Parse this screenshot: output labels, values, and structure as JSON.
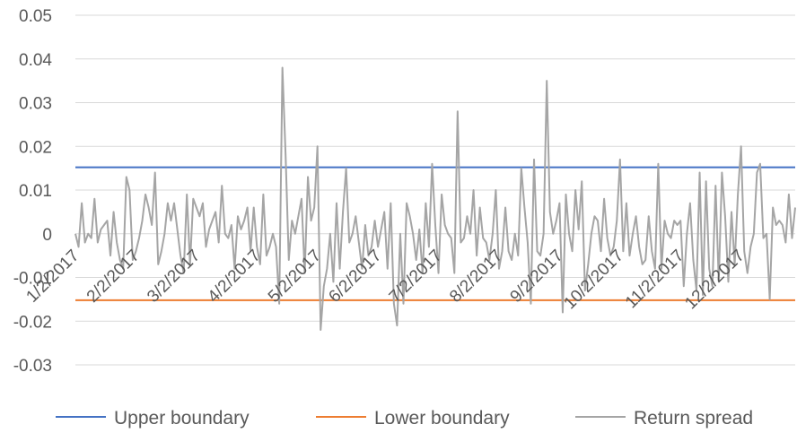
{
  "chart_data": {
    "type": "line",
    "title": "",
    "xlabel": "",
    "ylabel": "",
    "ylim": [
      -0.03,
      0.05
    ],
    "yticks": [
      0.05,
      0.04,
      0.03,
      0.02,
      0.01,
      0,
      -0.01,
      -0.02,
      -0.03
    ],
    "ytick_labels": [
      "0.05",
      "0.04",
      "0.03",
      "0.02",
      "0.01",
      "0",
      "-0.01",
      "-0.02",
      "-0.03"
    ],
    "xtick_labels": [
      "1/2/2017",
      "2/2/2017",
      "3/2/2017",
      "4/2/2017",
      "5/2/2017",
      "6/2/2017",
      "7/2/2017",
      "8/2/2017",
      "9/2/2017",
      "10/2/2017",
      "11/2/2017",
      "12/2/2017"
    ],
    "grid": true,
    "legend_position": "bottom",
    "colors": {
      "upper": "#4472C4",
      "lower": "#ED7D31",
      "spread": "#A5A5A5",
      "grid": "#D9D9D9",
      "text": "#595959"
    },
    "series": [
      {
        "name": "Upper boundary",
        "type": "constant",
        "value": 0.0152
      },
      {
        "name": "Lower boundary",
        "type": "constant",
        "value": -0.0152
      },
      {
        "name": "Return spread",
        "type": "line",
        "values": [
          0.0,
          -0.003,
          0.007,
          -0.002,
          0.0,
          -0.001,
          0.008,
          -0.002,
          0.001,
          0.002,
          0.003,
          -0.005,
          0.005,
          -0.002,
          -0.006,
          -0.008,
          0.013,
          0.01,
          -0.006,
          -0.004,
          -0.001,
          0.003,
          0.009,
          0.006,
          0.002,
          0.014,
          -0.007,
          -0.004,
          0.0,
          0.007,
          0.003,
          0.007,
          0.001,
          -0.005,
          -0.009,
          0.009,
          -0.007,
          0.008,
          0.006,
          0.004,
          0.007,
          -0.003,
          0.001,
          0.003,
          0.005,
          -0.002,
          0.011,
          0.0,
          -0.001,
          0.002,
          -0.008,
          0.004,
          0.001,
          0.003,
          0.006,
          -0.004,
          0.006,
          -0.003,
          -0.007,
          0.009,
          -0.005,
          -0.003,
          0.0,
          -0.003,
          -0.016,
          0.038,
          0.018,
          -0.006,
          0.003,
          0.0,
          0.004,
          0.008,
          -0.009,
          0.013,
          0.003,
          0.006,
          0.02,
          -0.022,
          -0.012,
          -0.008,
          0.0,
          -0.011,
          0.007,
          -0.008,
          0.005,
          0.015,
          -0.002,
          0.0,
          0.004,
          -0.002,
          -0.008,
          0.002,
          -0.005,
          -0.003,
          0.003,
          -0.003,
          0.001,
          0.005,
          -0.008,
          0.007,
          -0.016,
          -0.021,
          0.0,
          -0.016,
          0.007,
          0.004,
          0.0,
          -0.006,
          0.001,
          -0.009,
          0.007,
          -0.003,
          0.016,
          0.002,
          -0.009,
          0.009,
          0.002,
          0.0,
          -0.001,
          -0.009,
          0.028,
          -0.002,
          -0.001,
          0.004,
          0.0,
          0.01,
          -0.005,
          0.006,
          -0.001,
          -0.002,
          -0.006,
          0.0,
          0.01,
          -0.008,
          -0.004,
          0.006,
          -0.004,
          -0.006,
          0.0,
          -0.005,
          0.015,
          0.006,
          -0.002,
          -0.016,
          0.017,
          -0.004,
          -0.005,
          0.0,
          0.035,
          0.005,
          0.0,
          0.003,
          0.007,
          -0.018,
          0.009,
          0.0,
          -0.004,
          0.01,
          0.001,
          0.012,
          -0.013,
          -0.007,
          0.0,
          0.004,
          0.003,
          -0.004,
          0.008,
          -0.001,
          -0.005,
          -0.003,
          0.003,
          0.017,
          -0.004,
          0.007,
          -0.005,
          0.0,
          0.004,
          -0.003,
          -0.007,
          -0.006,
          0.004,
          -0.004,
          -0.008,
          0.016,
          -0.008,
          0.003,
          0.0,
          -0.001,
          0.003,
          0.002,
          0.003,
          -0.012,
          0.0,
          0.007,
          -0.006,
          -0.013,
          0.014,
          -0.014,
          0.012,
          -0.008,
          -0.012,
          0.011,
          -0.011,
          0.014,
          0.004,
          -0.011,
          0.005,
          -0.007,
          0.009,
          0.02,
          -0.004,
          -0.009,
          -0.003,
          0.0,
          0.014,
          0.016,
          -0.001,
          0.0,
          -0.015,
          0.006,
          0.002,
          0.003,
          0.002,
          -0.002,
          0.009,
          -0.001,
          0.006
        ]
      }
    ]
  }
}
